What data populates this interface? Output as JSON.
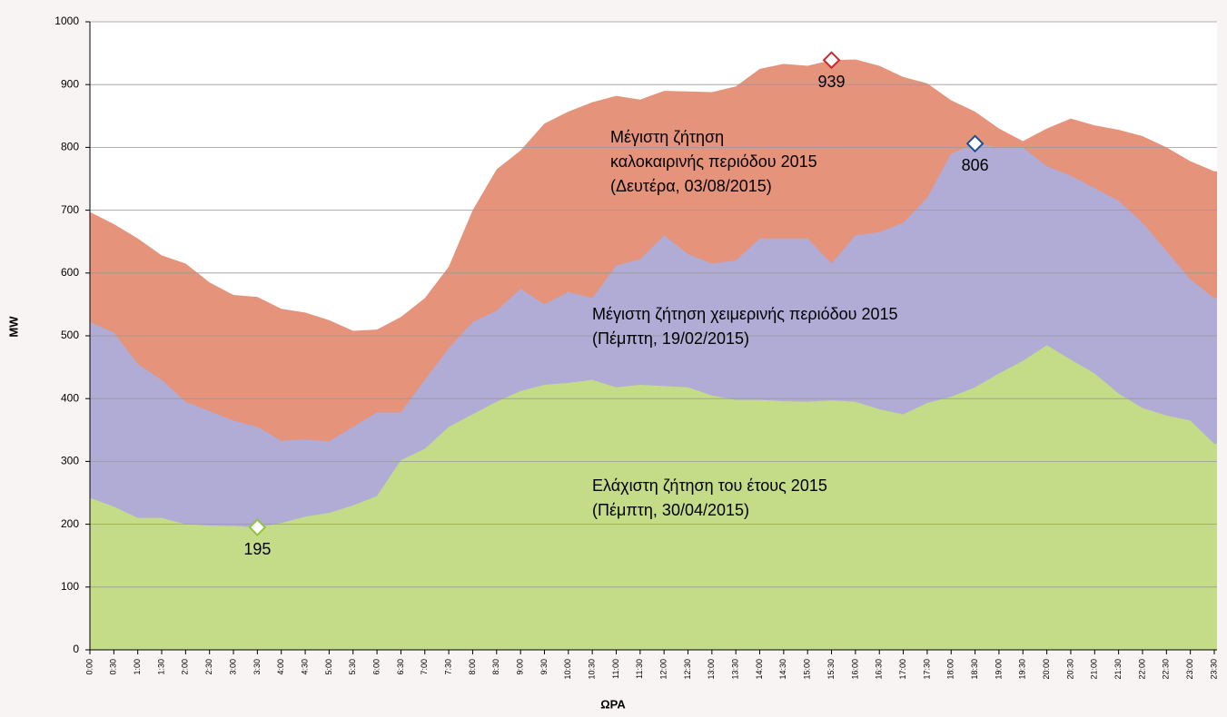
{
  "chart_data": {
    "type": "area",
    "xlabel": "ΩΡΑ",
    "ylabel": "MW",
    "categories": [
      "0:00",
      "0:30",
      "1:00",
      "1:30",
      "2:00",
      "2:30",
      "3:00",
      "3:30",
      "4:00",
      "4:30",
      "5:00",
      "5:30",
      "6:00",
      "6:30",
      "7:00",
      "7:30",
      "8:00",
      "8:30",
      "9:00",
      "9:30",
      "10:00",
      "10:30",
      "11:00",
      "11:30",
      "12:00",
      "12:30",
      "13:00",
      "13:30",
      "14:00",
      "14:30",
      "15:00",
      "15:30",
      "16:00",
      "16:30",
      "17:00",
      "17:30",
      "18:00",
      "18:30",
      "19:00",
      "19:30",
      "20:00",
      "20:30",
      "21:00",
      "21:30",
      "22:00",
      "22:30",
      "23:00",
      "23:30"
    ],
    "series": [
      {
        "label_lines": [
          "Μέγιστη ζήτηση",
          "καλοκαιρινής περιόδου 2015",
          "(Δευτέρα, 03/08/2015)"
        ],
        "color": "#e5937a",
        "values": [
          697,
          678,
          655,
          628,
          615,
          585,
          565,
          562,
          543,
          537,
          525,
          508,
          510,
          530,
          560,
          610,
          700,
          765,
          795,
          838,
          857,
          872,
          882,
          876,
          890,
          889,
          888,
          897,
          925,
          933,
          930,
          939,
          940,
          930,
          912,
          902,
          875,
          857,
          830,
          810,
          830,
          846,
          835,
          828,
          818,
          800,
          778,
          762
        ]
      },
      {
        "label_lines": [
          "Μέγιστη ζήτηση χειμερινής περιόδου 2015",
          "(Πέμπτη, 19/02/2015)"
        ],
        "color": "#b0acd6",
        "values": [
          522,
          505,
          455,
          430,
          395,
          380,
          365,
          355,
          333,
          335,
          332,
          355,
          378,
          378,
          430,
          480,
          522,
          540,
          575,
          550,
          570,
          560,
          612,
          622,
          660,
          630,
          615,
          620,
          655,
          655,
          655,
          615,
          660,
          665,
          680,
          720,
          790,
          806,
          800,
          800,
          770,
          755,
          735,
          715,
          680,
          635,
          590,
          560
        ]
      },
      {
        "label_lines": [
          "Ελάχιστη ζήτηση του έτους 2015",
          "(Πέμπτη, 30/04/2015)"
        ],
        "color": "#c4dc88",
        "values": [
          242,
          228,
          210,
          210,
          200,
          198,
          197,
          195,
          202,
          212,
          218,
          230,
          245,
          302,
          320,
          355,
          375,
          395,
          412,
          422,
          425,
          430,
          418,
          422,
          420,
          418,
          405,
          398,
          398,
          396,
          395,
          397,
          395,
          383,
          375,
          393,
          403,
          418,
          440,
          460,
          485,
          462,
          440,
          408,
          385,
          373,
          365,
          328
        ]
      }
    ],
    "markers": [
      {
        "x": "15:30",
        "value": 939,
        "color": "#c8282e"
      },
      {
        "x": "18:30",
        "value": 806,
        "color": "#1f4e8c"
      },
      {
        "x": "3:30",
        "value": 195,
        "color": "#8cc63f"
      }
    ],
    "ylim": [
      0,
      1000
    ],
    "yticks": [
      0,
      100,
      200,
      300,
      400,
      500,
      600,
      700,
      800,
      900,
      1000
    ],
    "grid": true
  }
}
